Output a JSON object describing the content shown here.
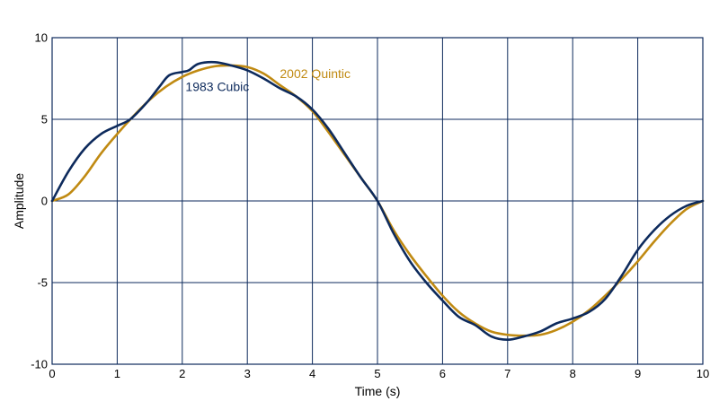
{
  "chart_data": {
    "type": "line",
    "xlabel": "Time (s)",
    "ylabel": "Amplitude",
    "xlim": [
      0,
      10
    ],
    "ylim": [
      -10,
      10
    ],
    "xticks": [
      "0",
      "1",
      "2",
      "3",
      "4",
      "5",
      "6",
      "7",
      "8",
      "9",
      "10"
    ],
    "yticks": [
      "10",
      "5",
      "0",
      "-5",
      "-10"
    ],
    "grid": true,
    "series": [
      {
        "name": "1983 Cubic",
        "color": "#0d2a5c",
        "x": [
          0,
          0.25,
          0.5,
          0.75,
          1.0,
          1.2,
          1.45,
          1.65,
          1.8,
          2.0,
          2.1,
          2.25,
          2.5,
          2.75,
          3.0,
          3.25,
          3.5,
          3.75,
          4.0,
          4.25,
          4.5,
          4.75,
          5.0,
          5.25,
          5.5,
          5.75,
          6.0,
          6.25,
          6.5,
          6.75,
          7.0,
          7.25,
          7.5,
          7.75,
          8.0,
          8.25,
          8.5,
          8.75,
          9.0,
          9.25,
          9.5,
          9.75,
          10.0
        ],
        "y": [
          0,
          1.8,
          3.2,
          4.1,
          4.6,
          5.0,
          6.0,
          7.0,
          7.7,
          7.9,
          8.0,
          8.4,
          8.5,
          8.3,
          8.0,
          7.5,
          6.9,
          6.4,
          5.6,
          4.4,
          2.9,
          1.4,
          0,
          -2.0,
          -3.7,
          -5.0,
          -6.1,
          -7.1,
          -7.6,
          -8.3,
          -8.5,
          -8.3,
          -8.0,
          -7.5,
          -7.2,
          -6.8,
          -6.0,
          -4.6,
          -3.0,
          -1.8,
          -0.9,
          -0.3,
          0
        ]
      },
      {
        "name": "2002 Quintic",
        "color": "#c08a12",
        "x": [
          0,
          0.25,
          0.5,
          0.75,
          1.0,
          1.25,
          1.5,
          1.75,
          2.0,
          2.25,
          2.5,
          2.75,
          3.0,
          3.25,
          3.5,
          3.75,
          4.0,
          4.25,
          4.5,
          4.75,
          5.0,
          5.25,
          5.5,
          5.75,
          6.0,
          6.25,
          6.5,
          6.75,
          7.0,
          7.25,
          7.5,
          7.75,
          8.0,
          8.25,
          8.5,
          8.75,
          9.0,
          9.25,
          9.5,
          9.75,
          10.0
        ],
        "y": [
          0,
          0.4,
          1.5,
          2.9,
          4.1,
          5.2,
          6.2,
          7.0,
          7.6,
          8.0,
          8.25,
          8.3,
          8.2,
          7.8,
          7.1,
          6.4,
          5.5,
          4.2,
          2.8,
          1.4,
          0,
          -1.8,
          -3.3,
          -4.6,
          -5.8,
          -6.8,
          -7.5,
          -8.0,
          -8.2,
          -8.25,
          -8.2,
          -7.9,
          -7.4,
          -6.7,
          -5.8,
          -4.8,
          -3.7,
          -2.5,
          -1.4,
          -0.5,
          0
        ]
      }
    ],
    "annotations": [
      {
        "text": "1983 Cubic",
        "x": 2.05,
        "y": 7.0,
        "series": 0
      },
      {
        "text": "2002 Quintic",
        "x": 3.5,
        "y": 7.8,
        "series": 1
      }
    ]
  }
}
